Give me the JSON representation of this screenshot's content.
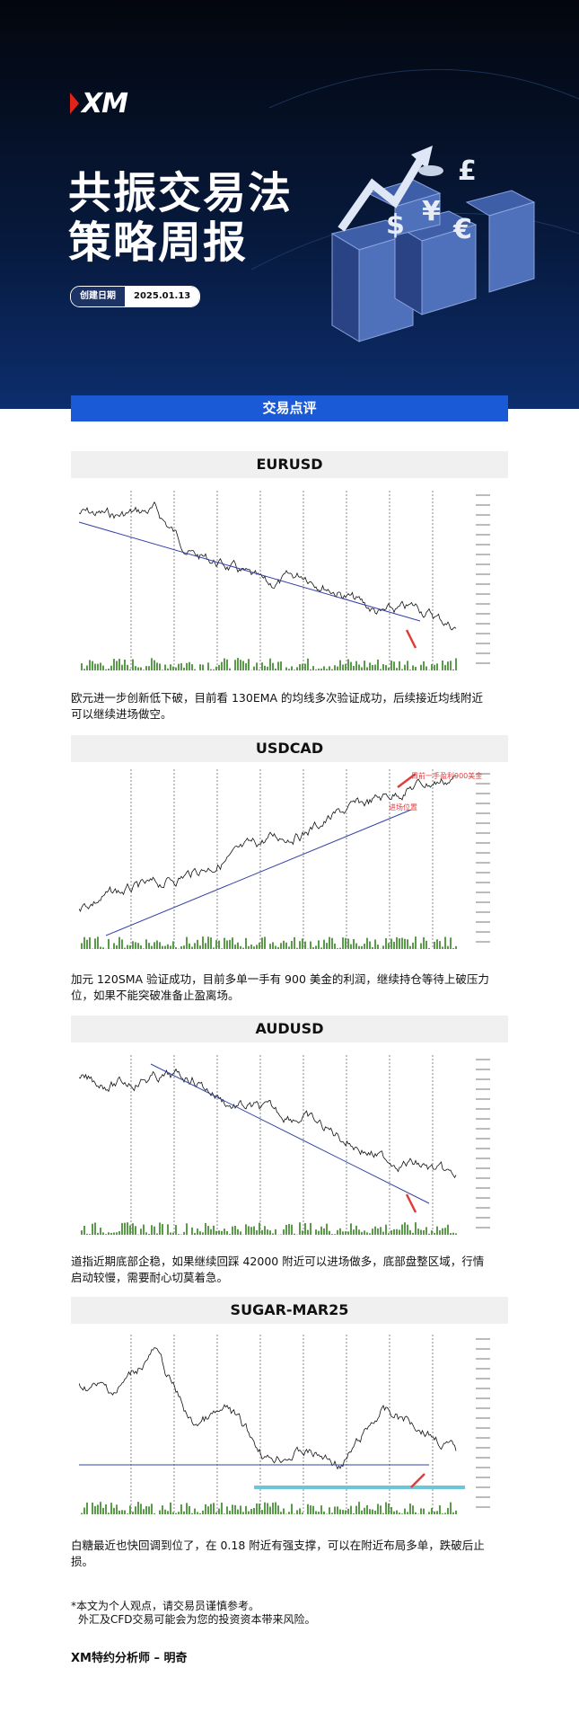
{
  "header": {
    "logo": "XM",
    "title_lines": [
      "共振交易法",
      "策略周报"
    ],
    "date_label": "创建日期",
    "date": "2025.01.13"
  },
  "section_title": "交易点评",
  "reviews": [
    {
      "symbol": "EURUSD",
      "text": "欧元进一步创新低下破，目前看 130EMA 的均线多次验证成功，后续接近均线附近可以继续进场做空。"
    },
    {
      "symbol": "USDCAD",
      "annotations": [
        "目前一手盈利900美金",
        "进场位置"
      ],
      "text": "加元 120SMA 验证成功，目前多单一手有 900 美金的利润，继续持仓等待上破压力位，如果不能突破准备止盈离场。"
    },
    {
      "symbol": "AUDUSD",
      "text": "道指近期底部企稳，如果继续回踩 42000 附近可以进场做多，底部盘整区域，行情启动较慢，需要耐心切莫着急。"
    },
    {
      "symbol": "SUGAR-MAR25",
      "text": "白糖最近也快回调到位了，在 0.18 附近有强支撑，可以在附近布局多单，跌破后止损。"
    }
  ],
  "disclaimer": [
    "*本文为个人观点，请交易员谨慎参考。",
    "外汇及CFD交易可能会为您的投资资本带来风险。"
  ],
  "footer": "XM特约分析师 – 明奇"
}
